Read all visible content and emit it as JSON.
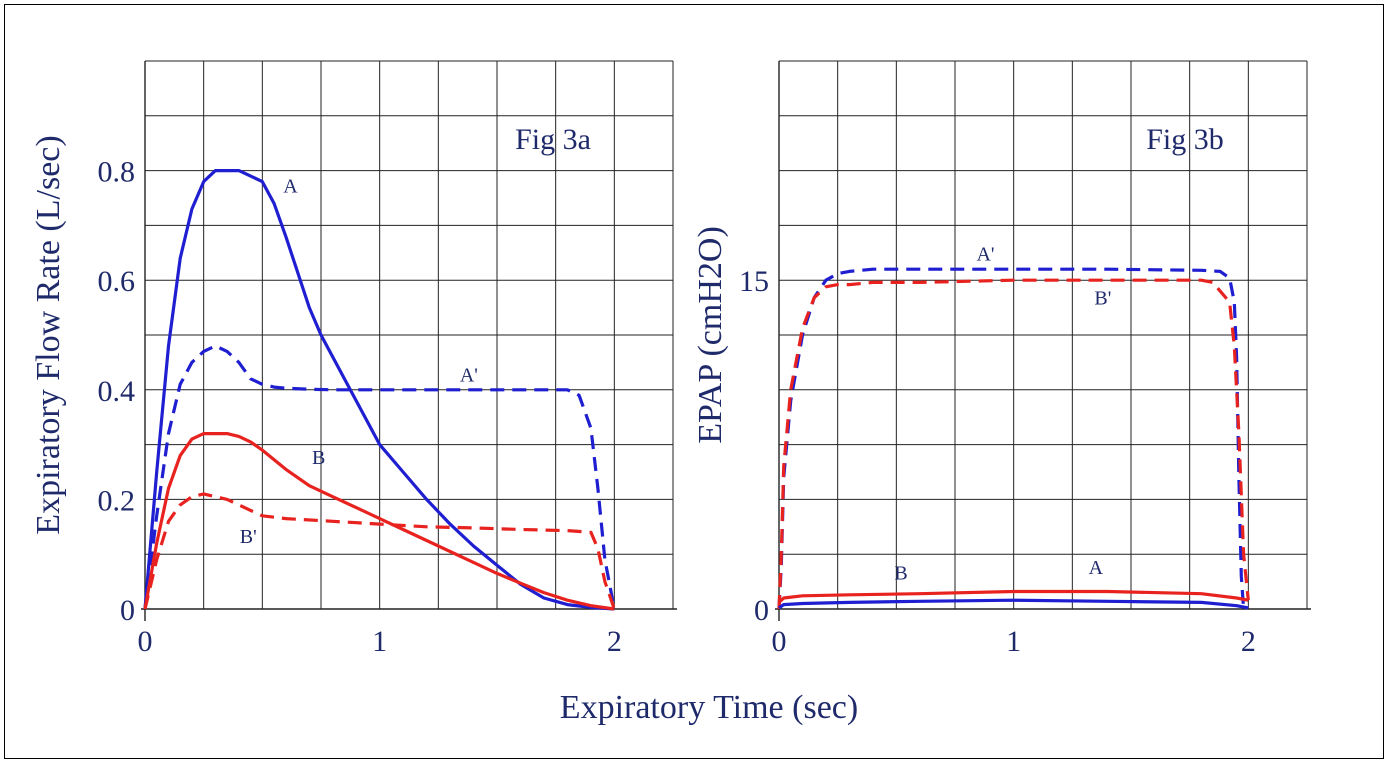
{
  "figure": {
    "shared_xlabel": "Expiratory Time (sec)"
  },
  "chart_data": [
    {
      "type": "line",
      "title": "Fig 3a",
      "xlabel": "Expiratory Time (sec)",
      "ylabel": "Expiratory Flow Rate (L/sec)",
      "xlim": [
        0,
        2.25
      ],
      "ylim": [
        0,
        1.0
      ],
      "x_ticks": [
        0,
        1,
        2
      ],
      "x_tick_labels": [
        "0",
        "1",
        "2"
      ],
      "y_ticks": [
        0,
        0.2,
        0.4,
        0.6,
        0.8
      ],
      "y_tick_labels": [
        "0",
        "0.2",
        "0.4",
        "0.6",
        "0.8"
      ],
      "grid": true,
      "x_grid_step": 0.25,
      "y_grid_step": 0.1,
      "series": [
        {
          "name": "A",
          "color": "#1f1fd1",
          "dash": "solid",
          "label_at": [
            0.62,
            0.76
          ],
          "x": [
            0,
            0.05,
            0.1,
            0.15,
            0.2,
            0.25,
            0.3,
            0.35,
            0.4,
            0.45,
            0.5,
            0.55,
            0.6,
            0.7,
            0.75,
            0.8,
            0.9,
            1.0,
            1.1,
            1.2,
            1.3,
            1.4,
            1.5,
            1.6,
            1.7,
            1.8,
            1.9,
            2.0
          ],
          "y": [
            0,
            0.25,
            0.48,
            0.64,
            0.73,
            0.78,
            0.8,
            0.8,
            0.8,
            0.79,
            0.78,
            0.74,
            0.68,
            0.55,
            0.5,
            0.46,
            0.38,
            0.3,
            0.25,
            0.2,
            0.155,
            0.115,
            0.08,
            0.045,
            0.02,
            0.008,
            0.003,
            0
          ]
        },
        {
          "name": "A'",
          "color": "#1f1fd1",
          "dash": "dashed",
          "label_at": [
            1.38,
            0.415
          ],
          "x": [
            0,
            0.05,
            0.1,
            0.15,
            0.2,
            0.25,
            0.3,
            0.35,
            0.4,
            0.45,
            0.5,
            0.55,
            0.6,
            0.7,
            0.8,
            1.0,
            1.2,
            1.4,
            1.6,
            1.8,
            1.85,
            1.9,
            1.93,
            1.96,
            2.0
          ],
          "y": [
            0,
            0.17,
            0.32,
            0.41,
            0.45,
            0.47,
            0.48,
            0.47,
            0.45,
            0.42,
            0.41,
            0.405,
            0.403,
            0.401,
            0.4,
            0.4,
            0.4,
            0.4,
            0.4,
            0.4,
            0.39,
            0.33,
            0.22,
            0.09,
            0
          ]
        },
        {
          "name": "B",
          "color": "#e8231f",
          "dash": "solid",
          "label_at": [
            0.74,
            0.265
          ],
          "x": [
            0,
            0.05,
            0.1,
            0.15,
            0.2,
            0.25,
            0.3,
            0.35,
            0.4,
            0.45,
            0.5,
            0.6,
            0.7,
            0.8,
            0.9,
            1.0,
            1.1,
            1.2,
            1.3,
            1.4,
            1.5,
            1.6,
            1.7,
            1.8,
            1.9,
            2.0
          ],
          "y": [
            0,
            0.12,
            0.22,
            0.28,
            0.31,
            0.32,
            0.32,
            0.32,
            0.315,
            0.305,
            0.29,
            0.255,
            0.225,
            0.205,
            0.185,
            0.165,
            0.145,
            0.125,
            0.105,
            0.085,
            0.065,
            0.047,
            0.03,
            0.016,
            0.006,
            0
          ]
        },
        {
          "name": "B'",
          "color": "#e8231f",
          "dash": "dashed",
          "label_at": [
            0.44,
            0.12
          ],
          "x": [
            0,
            0.05,
            0.1,
            0.15,
            0.2,
            0.25,
            0.3,
            0.35,
            0.4,
            0.45,
            0.5,
            0.6,
            0.8,
            1.0,
            1.2,
            1.4,
            1.6,
            1.8,
            1.9,
            1.93,
            1.96,
            2.0
          ],
          "y": [
            0,
            0.09,
            0.16,
            0.19,
            0.205,
            0.21,
            0.205,
            0.2,
            0.19,
            0.18,
            0.17,
            0.165,
            0.16,
            0.155,
            0.15,
            0.148,
            0.145,
            0.143,
            0.14,
            0.11,
            0.05,
            0
          ]
        }
      ]
    },
    {
      "type": "line",
      "title": "Fig 3b",
      "xlabel": "Expiratory Time (sec)",
      "ylabel": "EPAP (cmH2O)",
      "xlim": [
        0,
        2.25
      ],
      "ylim": [
        0,
        25
      ],
      "x_ticks": [
        0,
        1,
        2
      ],
      "x_tick_labels": [
        "0",
        "1",
        "2"
      ],
      "y_ticks": [
        0,
        15
      ],
      "y_tick_labels": [
        "0",
        "15"
      ],
      "grid": true,
      "x_grid_step": 0.25,
      "y_grid_step": 2.5,
      "series": [
        {
          "name": "A'",
          "color": "#1f1fd1",
          "dash": "dashed",
          "label_at": [
            0.88,
            15.9
          ],
          "x": [
            0,
            0.01,
            0.02,
            0.05,
            0.1,
            0.15,
            0.2,
            0.25,
            0.3,
            0.4,
            0.6,
            1.0,
            1.4,
            1.8,
            1.88,
            1.92,
            1.94,
            1.95,
            1.96,
            1.97,
            1.98
          ],
          "y": [
            0,
            2,
            6,
            9.5,
            12.5,
            14.2,
            15.0,
            15.3,
            15.4,
            15.5,
            15.5,
            15.5,
            15.5,
            15.45,
            15.4,
            15.1,
            14.0,
            11.5,
            6,
            1.5,
            0
          ]
        },
        {
          "name": "B'",
          "color": "#e8231f",
          "dash": "dashed",
          "label_at": [
            1.38,
            13.9
          ],
          "x": [
            0,
            0.01,
            0.02,
            0.05,
            0.1,
            0.15,
            0.2,
            0.25,
            0.3,
            0.4,
            0.6,
            1.0,
            1.4,
            1.8,
            1.85,
            1.88,
            1.92,
            1.94,
            1.96,
            1.98,
            2.0
          ],
          "y": [
            0,
            2.5,
            6.5,
            10,
            12.8,
            14.2,
            14.7,
            14.8,
            14.8,
            14.9,
            14.9,
            15.0,
            15.0,
            15.0,
            14.9,
            14.5,
            14.0,
            12.0,
            8,
            2.5,
            0.4
          ]
        },
        {
          "name": "B",
          "color": "#e8231f",
          "dash": "solid",
          "label_at": [
            0.52,
            1.35
          ],
          "x": [
            0,
            0.02,
            0.1,
            0.3,
            0.6,
            1.0,
            1.4,
            1.8,
            1.95,
            2.0
          ],
          "y": [
            0.3,
            0.5,
            0.6,
            0.65,
            0.7,
            0.8,
            0.8,
            0.7,
            0.5,
            0.4
          ]
        },
        {
          "name": "A",
          "color": "#1f1fd1",
          "dash": "solid",
          "label_at": [
            1.35,
            1.6
          ],
          "x": [
            0,
            0.02,
            0.1,
            0.3,
            0.6,
            1.0,
            1.4,
            1.8,
            1.95,
            2.0
          ],
          "y": [
            0.05,
            0.2,
            0.25,
            0.3,
            0.35,
            0.4,
            0.35,
            0.3,
            0.15,
            0.05
          ]
        }
      ]
    }
  ]
}
